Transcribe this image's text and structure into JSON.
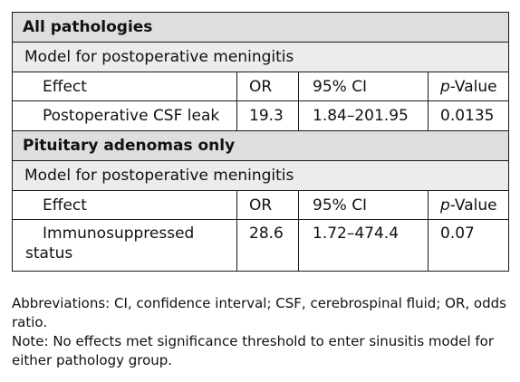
{
  "sections": [
    {
      "title": "All pathologies",
      "model": "Model for postoperative meningitis",
      "header": {
        "effect": "Effect",
        "or": "OR",
        "ci": "95% CI",
        "p_italic": "p",
        "p_rest": "-Value"
      },
      "row": {
        "effect": "Postoperative CSF leak",
        "or": "19.3",
        "ci": "1.84–201.95",
        "p": "0.0135"
      }
    },
    {
      "title": "Pituitary adenomas only",
      "model": "Model for postoperative meningitis",
      "header": {
        "effect": "Effect",
        "or": "OR",
        "ci": "95% CI",
        "p_italic": "p",
        "p_rest": "-Value"
      },
      "row": {
        "effect": "Immunosuppressed status",
        "or": "28.6",
        "ci": "1.72–474.4",
        "p": "0.07"
      }
    }
  ],
  "notes": {
    "abbreviations": "Abbreviations: CI, confidence interval; CSF, cerebrospinal fluid; OR, odds ratio.",
    "note": "Note: No effects met significance threshold to enter sinusitis model for either pathology group."
  }
}
